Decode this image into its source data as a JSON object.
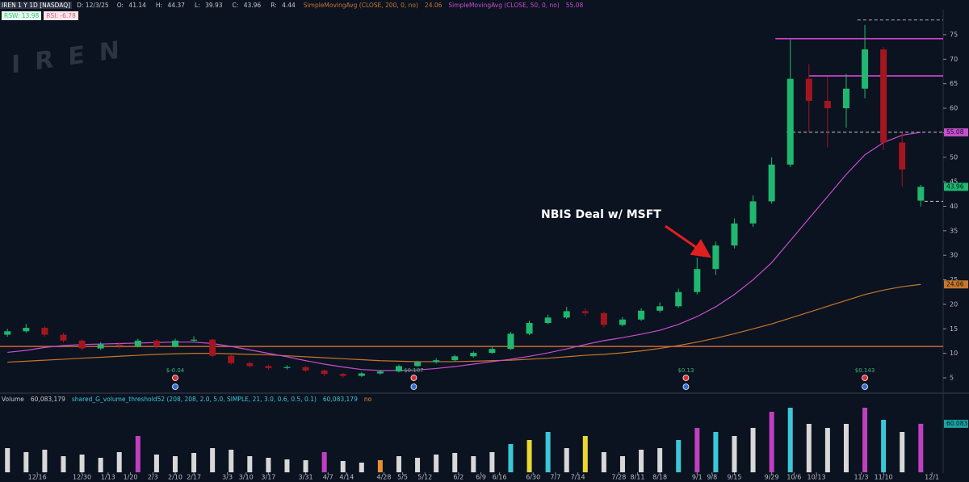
{
  "chart_data": {
    "type": "candlestick",
    "header": {
      "symbol": "IREN 1 Y 1D [NASDAQ]",
      "date": "D: 12/3/25",
      "ohlc_prefixes": [
        "O:",
        "H:",
        "L:",
        "C:"
      ],
      "range_prefix": "R:",
      "range": 4.44
    },
    "indicators": [
      {
        "text": "RSW: 13.98",
        "color": "#2fd07a"
      },
      {
        "text": "RSI: -6.78",
        "color": "#e0607a"
      }
    ],
    "watermark": "IREN",
    "annotation": "NBIS Deal w/ MSFT",
    "x": [
      -8,
      -3,
      2,
      7,
      12,
      17,
      22,
      27,
      32,
      37,
      42,
      47,
      52,
      57,
      62,
      67,
      72,
      77,
      82,
      87,
      92,
      97,
      102,
      107,
      112,
      117,
      122,
      127,
      132,
      137,
      142,
      147,
      152,
      157,
      162,
      167,
      172,
      177,
      182,
      187,
      192,
      197,
      202,
      207,
      212,
      217,
      222,
      227,
      232,
      237
    ],
    "open": [
      13.8,
      14.5,
      15.2,
      13.8,
      12.6,
      11.0,
      11.8,
      11.5,
      12.6,
      11.4,
      12.6,
      12.8,
      9.5,
      8.0,
      7.4,
      7.0,
      7.2,
      6.5,
      5.8,
      5.4,
      5.9,
      6.3,
      7.4,
      8.2,
      8.6,
      9.4,
      10.1,
      10.9,
      14.0,
      16.2,
      17.3,
      18.6,
      18.2,
      15.8,
      16.9,
      18.7,
      19.6,
      22.5,
      27.2,
      32.0,
      36.5,
      41.0,
      48.5,
      66.0,
      61.5,
      60.0,
      64.0,
      72.0,
      53.0,
      41.14
    ],
    "high": [
      15.0,
      16.0,
      15.5,
      14.2,
      12.9,
      12.3,
      12.2,
      13.0,
      12.9,
      13.0,
      13.5,
      13.0,
      9.8,
      8.3,
      7.7,
      7.6,
      7.4,
      6.7,
      6.0,
      6.2,
      6.6,
      7.7,
      8.5,
      9.0,
      9.7,
      10.4,
      11.3,
      14.4,
      16.7,
      17.9,
      19.5,
      19.2,
      18.5,
      17.4,
      19.2,
      20.4,
      23.2,
      29.5,
      32.8,
      37.5,
      42.2,
      50.0,
      74.0,
      69.0,
      66.5,
      67.0,
      77.0,
      72.5,
      55.0,
      44.37
    ],
    "low": [
      13.4,
      14.2,
      13.4,
      12.2,
      10.6,
      10.7,
      11.0,
      11.2,
      11.0,
      11.2,
      12.2,
      9.2,
      7.7,
      7.1,
      6.6,
      6.7,
      6.2,
      5.3,
      5.0,
      5.2,
      5.6,
      6.1,
      7.2,
      7.9,
      8.4,
      9.1,
      9.9,
      10.7,
      13.7,
      15.9,
      17.0,
      17.6,
      15.3,
      15.5,
      16.6,
      18.3,
      19.3,
      22.0,
      26.0,
      31.4,
      35.8,
      40.5,
      48.0,
      55.0,
      52.0,
      56.0,
      62.0,
      51.5,
      44.0,
      39.93
    ],
    "close": [
      14.5,
      15.2,
      13.8,
      12.6,
      11.0,
      11.8,
      11.5,
      12.6,
      11.4,
      12.6,
      12.8,
      9.5,
      8.0,
      7.4,
      7.0,
      7.2,
      6.5,
      5.8,
      5.4,
      5.9,
      6.3,
      7.4,
      8.2,
      8.6,
      9.4,
      10.1,
      10.9,
      14.0,
      16.2,
      17.3,
      18.6,
      18.2,
      15.8,
      16.9,
      18.7,
      19.6,
      22.5,
      27.2,
      32.0,
      36.5,
      41.0,
      48.5,
      66.0,
      61.5,
      60.0,
      64.0,
      72.0,
      53.0,
      47.5,
      43.96
    ],
    "up_color": "#1fb86e",
    "down_color": "#a3161f",
    "overlays": [
      {
        "name": "SimpleMovingAvg (CLOSE, 200, 0, no)",
        "color": "#c7772b",
        "values": [
          8.2,
          8.4,
          8.6,
          8.8,
          9.0,
          9.2,
          9.4,
          9.6,
          9.8,
          9.9,
          10.0,
          10.0,
          9.9,
          9.8,
          9.7,
          9.5,
          9.3,
          9.1,
          8.9,
          8.7,
          8.5,
          8.4,
          8.3,
          8.3,
          8.3,
          8.4,
          8.5,
          8.6,
          8.8,
          9.0,
          9.3,
          9.6,
          9.8,
          10.1,
          10.5,
          11.0,
          11.6,
          12.3,
          13.1,
          14.0,
          15.0,
          16.0,
          17.2,
          18.4,
          19.6,
          20.8,
          22.0,
          22.9,
          23.6,
          24.06
        ]
      },
      {
        "name": "SimpleMovingAvg (CLOSE, 50, 0, no)",
        "color": "#c64fcd",
        "values": [
          10.2,
          10.6,
          11.2,
          11.6,
          11.8,
          11.9,
          12.0,
          12.1,
          12.2,
          12.3,
          12.3,
          12.0,
          11.4,
          10.7,
          10.0,
          9.3,
          8.5,
          7.8,
          7.2,
          6.7,
          6.5,
          6.5,
          6.6,
          6.9,
          7.3,
          7.8,
          8.3,
          8.8,
          9.4,
          10.1,
          10.9,
          11.8,
          12.6,
          13.2,
          13.9,
          14.7,
          15.9,
          17.5,
          19.5,
          22.0,
          25.0,
          28.5,
          33.0,
          37.5,
          42.0,
          46.5,
          50.5,
          53.0,
          54.5,
          55.08
        ]
      }
    ],
    "levels": [
      {
        "value": 74.2,
        "x_start": 198,
        "color": "#e84ae8",
        "style": "solid"
      },
      {
        "value": 66.6,
        "x_start": 207,
        "color": "#e84ae8",
        "style": "solid"
      },
      {
        "value": 78.0,
        "x_start": 220,
        "color": "#b0b0b0",
        "style": "dashed"
      },
      {
        "value": 55.1,
        "x_start": 201,
        "color": "#c8c8c8",
        "style": "dashed"
      },
      {
        "value": 41.0,
        "x_start": 238,
        "color": "#c8c8c8",
        "style": "dashed"
      },
      {
        "value": 11.4,
        "x_start": -10,
        "color": "#c8693a",
        "style": "solid"
      }
    ],
    "earnings": {
      "x": [
        37,
        101,
        174,
        222
      ],
      "labels": [
        "$-0.04",
        "$0.107",
        "$0.13",
        "$0.143"
      ],
      "color": "#3cb878"
    },
    "xlim": [
      -10,
      243
    ],
    "xticks": [
      {
        "value": 0,
        "label": "12/16"
      },
      {
        "value": 12,
        "label": "12/30"
      },
      {
        "value": 19,
        "label": "1/13"
      },
      {
        "value": 25,
        "label": "1/20"
      },
      {
        "value": 31,
        "label": "2/3"
      },
      {
        "value": 37,
        "label": "2/10"
      },
      {
        "value": 42,
        "label": "2/17"
      },
      {
        "value": 51,
        "label": "3/3"
      },
      {
        "value": 56,
        "label": "3/10"
      },
      {
        "value": 62,
        "label": "3/17"
      },
      {
        "value": 72,
        "label": "3/31"
      },
      {
        "value": 78,
        "label": "4/7"
      },
      {
        "value": 83,
        "label": "4/14"
      },
      {
        "value": 93,
        "label": "4/28"
      },
      {
        "value": 98,
        "label": "5/5"
      },
      {
        "value": 104,
        "label": "5/12"
      },
      {
        "value": 113,
        "label": "6/2"
      },
      {
        "value": 119,
        "label": "6/9"
      },
      {
        "value": 124,
        "label": "6/16"
      },
      {
        "value": 133,
        "label": "6/30"
      },
      {
        "value": 139,
        "label": "7/7"
      },
      {
        "value": 145,
        "label": "7/14"
      },
      {
        "value": 156,
        "label": "7/28"
      },
      {
        "value": 161,
        "label": "8/11"
      },
      {
        "value": 167,
        "label": "8/18"
      },
      {
        "value": 177,
        "label": "9/1"
      },
      {
        "value": 181,
        "label": "9/8"
      },
      {
        "value": 187,
        "label": "9/15"
      },
      {
        "value": 197,
        "label": "9/29"
      },
      {
        "value": 203,
        "label": "10/6"
      },
      {
        "value": 209,
        "label": "10/13"
      },
      {
        "value": 221,
        "label": "11/3"
      },
      {
        "value": 227,
        "label": "11/10"
      },
      {
        "value": 240,
        "label": "12/1"
      }
    ],
    "ylim": [
      2.2,
      80.1
    ],
    "yticks": [
      5,
      10,
      15,
      20,
      25,
      30,
      35,
      40,
      45,
      50,
      55,
      60,
      65,
      70,
      75
    ],
    "volume": {
      "name": "Volume",
      "study": "shared_G_volume_threshold52 (208, 208, 2.0, 5.0, SIMPLE, 21, 3.0, 0.6, 0.5, 0.1)",
      "flag": "no",
      "value_label": "60,083,179",
      "badge_label": "60.083",
      "badge_color": "#1aa3a3",
      "vlim": [
        0,
        85000000
      ],
      "values": [
        30000000,
        25000000,
        28000000,
        20000000,
        22000000,
        18000000,
        25000000,
        45000000,
        22000000,
        20000000,
        24000000,
        30000000,
        28000000,
        20000000,
        18000000,
        16000000,
        15000000,
        25000000,
        14000000,
        12000000,
        15000000,
        20000000,
        18000000,
        22000000,
        24000000,
        20000000,
        25000000,
        35000000,
        40000000,
        50000000,
        30000000,
        45000000,
        25000000,
        20000000,
        28000000,
        30000000,
        40000000,
        55000000,
        50000000,
        45000000,
        55000000,
        75000000,
        80000000,
        60000000,
        55000000,
        60000000,
        80000000,
        65000000,
        50000000,
        60083179
      ],
      "colors": [
        "#d8d8d8",
        "#d8d8d8",
        "#d8d8d8",
        "#d8d8d8",
        "#d8d8d8",
        "#d8d8d8",
        "#d8d8d8",
        "#c040c0",
        "#d8d8d8",
        "#d8d8d8",
        "#d8d8d8",
        "#d8d8d8",
        "#d8d8d8",
        "#d8d8d8",
        "#d8d8d8",
        "#d8d8d8",
        "#d8d8d8",
        "#c040c0",
        "#d8d8d8",
        "#d8d8d8",
        "#e89030",
        "#d8d8d8",
        "#d8d8d8",
        "#d8d8d8",
        "#d8d8d8",
        "#d8d8d8",
        "#d8d8d8",
        "#3ac8d8",
        "#e8d830",
        "#3ac8d8",
        "#d8d8d8",
        "#e8d830",
        "#d8d8d8",
        "#d8d8d8",
        "#d8d8d8",
        "#d8d8d8",
        "#3ac8d8",
        "#c040c0",
        "#3ac8d8",
        "#d8d8d8",
        "#d8d8d8",
        "#c040c0",
        "#3ac8d8",
        "#d8d8d8",
        "#d8d8d8",
        "#d8d8d8",
        "#c040c0",
        "#3ac8d8",
        "#d8d8d8",
        "#c040c0"
      ]
    }
  }
}
